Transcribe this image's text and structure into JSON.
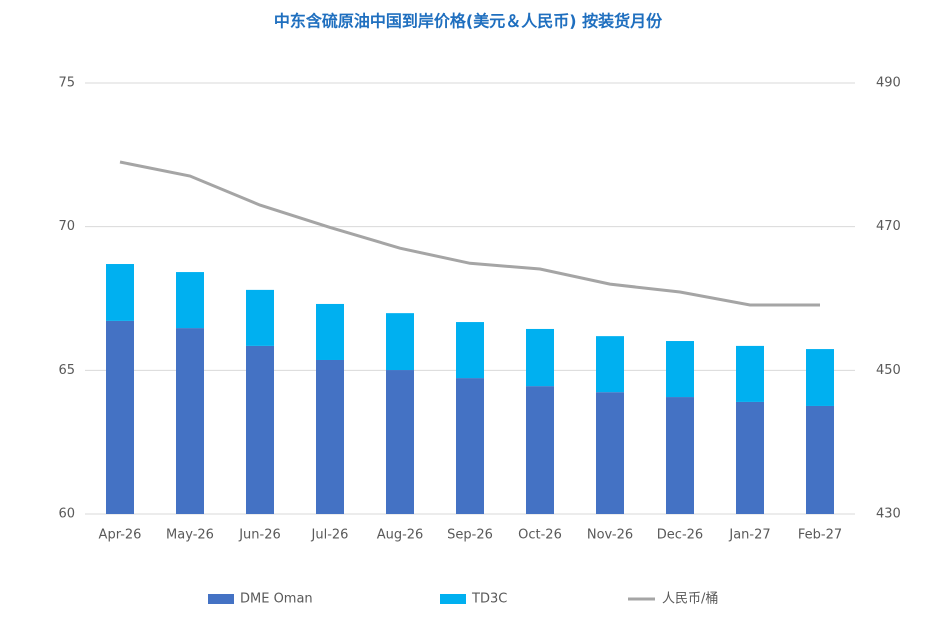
{
  "chart_data": {
    "type": "bar",
    "title": "中东含硫原油中国到岸价格(美元＆人民币) 按装货月份",
    "categories": [
      "Apr-26",
      "May-26",
      "Jun-26",
      "Jul-26",
      "Aug-26",
      "Sep-26",
      "Oct-26",
      "Nov-26",
      "Dec-26",
      "Jan-27",
      "Feb-27"
    ],
    "series": [
      {
        "name": "DME Oman",
        "color": "#4472c4",
        "type": "bar",
        "values": [
          66.72,
          66.47,
          65.85,
          65.36,
          65.01,
          64.73,
          64.45,
          64.24,
          64.07,
          63.9,
          63.76
        ]
      },
      {
        "name": "TD3C",
        "color": "#00b0f0",
        "type": "bar",
        "values": [
          1.98,
          1.95,
          1.95,
          1.95,
          1.98,
          1.95,
          1.99,
          1.95,
          1.95,
          1.95,
          1.98
        ]
      },
      {
        "name": "人民币/桶",
        "color": "#a5a5a5",
        "type": "line",
        "axis": "y2",
        "values": [
          479.0,
          477.05,
          473.0,
          469.9,
          467.0,
          464.9,
          464.1,
          462.0,
          460.9,
          459.1,
          459.1
        ]
      }
    ],
    "stacked": true,
    "ylim": [
      60,
      75
    ],
    "yticks": [
      60,
      65,
      70,
      75
    ],
    "y2lim": [
      430,
      490
    ],
    "y2ticks": [
      430,
      450,
      470,
      490
    ],
    "grid": true,
    "legend": "bottom"
  }
}
